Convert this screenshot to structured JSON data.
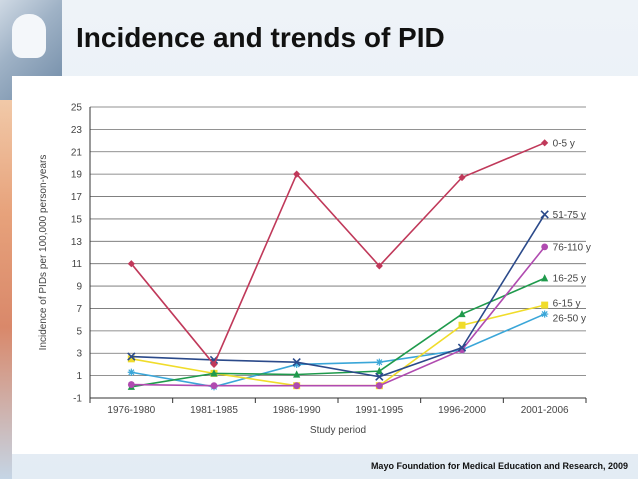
{
  "slide": {
    "title": "Incidence and trends of PID",
    "source": "Mayo Foundation for Medical Education and Research, 2009"
  },
  "chart_data": {
    "type": "line",
    "title": "",
    "xlabel": "Study period",
    "ylabel": "Incidence of PIDs per 100,000 person-years",
    "categories": [
      "1976-1980",
      "1981-1985",
      "1986-1990",
      "1991-1995",
      "1996-2000",
      "2001-2006"
    ],
    "ylim": [
      -1,
      25
    ],
    "yticks": [
      -1,
      1,
      3,
      5,
      7,
      9,
      11,
      13,
      15,
      17,
      19,
      21,
      23,
      25
    ],
    "grid": true,
    "series": [
      {
        "name": "0-5 y",
        "color": "#c0395a",
        "marker": "diamond",
        "values": [
          11,
          2,
          19,
          10.8,
          18.7,
          21.8
        ]
      },
      {
        "name": "51-75 y",
        "color": "#2b4a8a",
        "marker": "x",
        "values": [
          2.7,
          2.4,
          2.2,
          0.9,
          3.5,
          15.4
        ]
      },
      {
        "name": "76-110 y",
        "color": "#b04bb0",
        "marker": "circle",
        "values": [
          0.2,
          0.1,
          0.1,
          0.1,
          3.3,
          12.5
        ]
      },
      {
        "name": "16-25 y",
        "color": "#1f9a4c",
        "marker": "triangle",
        "values": [
          0,
          1.2,
          1.1,
          1.4,
          6.5,
          9.7
        ]
      },
      {
        "name": "6-15 y",
        "color": "#f0dc2a",
        "marker": "square",
        "values": [
          2.5,
          1.2,
          0.1,
          0.1,
          5.5,
          7.3
        ]
      },
      {
        "name": "26-50 y",
        "color": "#3aa6d8",
        "marker": "star",
        "values": [
          1.3,
          0,
          2,
          2.2,
          3.3,
          6.5
        ]
      }
    ]
  }
}
